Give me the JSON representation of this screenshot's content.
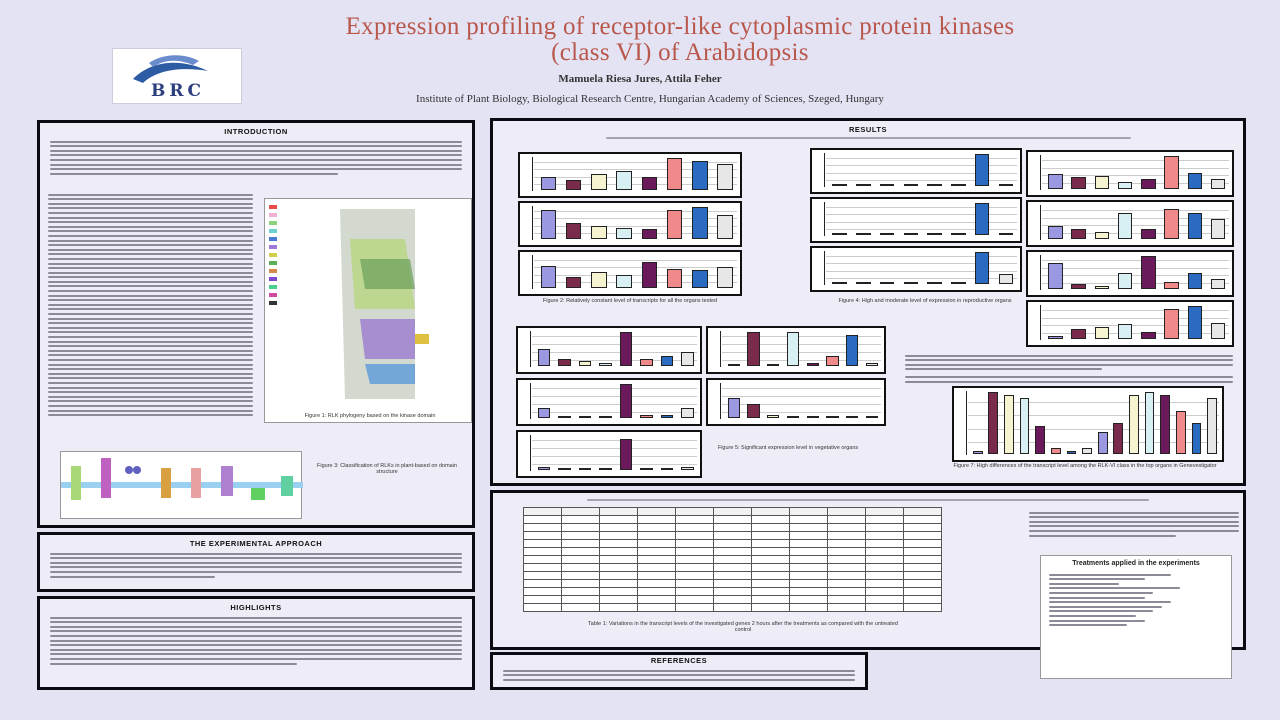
{
  "poster": {
    "title_line1": "Expression profiling of receptor-like cytoplasmic protein kinases",
    "title_line2": "(class VI) of Arabidopsis",
    "authors": "Mamuela Riesa Jures, Attila Feher",
    "institute": "Institute of Plant Biology, Biological Research Centre, Hungarian Academy of Sciences, Szeged, Hungary",
    "logo_text": "BRC"
  },
  "sections": {
    "introduction": "INTRODUCTION",
    "experimental": "THE EXPERIMENTAL APPROACH",
    "highlights": "HIGHLIGHTS",
    "results": "RESULTS",
    "references": "REFERENCES"
  },
  "figures": {
    "fig2_caption": "Figure 2: Relatively constant level of transcripts for all the organs tested",
    "fig4_caption": "Figure 4: High and moderate level of expression in reproductive organs",
    "fig5_caption": "Figure 5: Significant expression level in vegetative organs",
    "fig1_caption": "Figure 1: RLK phylogeny based on the kinase domain",
    "fig3_caption": "Figure 3: Classification of RLKs in plant-based on domain structure",
    "fig7_caption": "Figure 7: High differences of the transcript level among the RLK-VI class in the top organs in Genevestigator",
    "table_caption": "Table 1: Variations in the transcript levels of the investigated genes 2 hours after the treatments as compared with the untreated control",
    "conditions_title": "Treatments applied in the experiments"
  },
  "colors": {
    "title": "#b8574a",
    "bar_palette": [
      "#9a98e0",
      "#7a2a4a",
      "#f6f3d0",
      "#d8f0f4",
      "#6a1a5a",
      "#f08a8a",
      "#2a6ac0",
      "#e7e7e7"
    ]
  },
  "charts": {
    "fig2": [
      [
        0.4,
        0.3,
        0.5,
        0.6,
        0.4,
        1.0,
        0.9,
        0.8
      ],
      [
        0.9,
        0.5,
        0.4,
        0.35,
        0.3,
        0.9,
        1.0,
        0.75
      ],
      [
        0.7,
        0.35,
        0.5,
        0.4,
        0.8,
        0.6,
        0.55,
        0.65
      ]
    ],
    "fig4_left": [
      [
        0,
        0,
        0,
        0,
        0,
        0,
        1.0,
        0
      ],
      [
        0,
        0,
        0,
        0,
        0,
        0,
        1.0,
        0
      ],
      [
        0,
        0,
        0,
        0,
        0,
        0,
        1.0,
        0.3
      ]
    ],
    "fig4_right": [
      [
        0.45,
        0.35,
        0.4,
        0.2,
        0.3,
        1.0,
        0.5,
        0.3
      ],
      [
        0.4,
        0.3,
        0.2,
        0.8,
        0.3,
        0.9,
        0.8,
        0.6
      ],
      [
        0.8,
        0.15,
        0.1,
        0.5,
        1.0,
        0.2,
        0.5,
        0.3
      ],
      [
        0.1,
        0.3,
        0.35,
        0.45,
        0.2,
        0.9,
        1.0,
        0.5
      ]
    ],
    "fig5_left": [
      [
        0.5,
        0.2,
        0.15,
        0.1,
        1.0,
        0.2,
        0.3,
        0.4
      ],
      [
        0.3,
        0.05,
        0.05,
        0.05,
        1.0,
        0.1,
        0.1,
        0.3
      ],
      [
        0.1,
        0.05,
        0.05,
        0.05,
        0.9,
        0.05,
        0.05,
        0.1
      ]
    ],
    "fig5_right": [
      [
        0.05,
        1.0,
        0.05,
        1.0,
        0.1,
        0.3,
        0.9,
        0.1
      ],
      [
        0.6,
        0.4,
        0.1,
        0.05,
        0.05,
        0.05,
        0.05,
        0.05
      ]
    ],
    "fig7": [
      0.05,
      1.0,
      0.95,
      0.9,
      0.45,
      0.1,
      0.05,
      0.1,
      0.35,
      0.5,
      0.95,
      1.0,
      0.95,
      0.7,
      0.5,
      0.9
    ]
  }
}
